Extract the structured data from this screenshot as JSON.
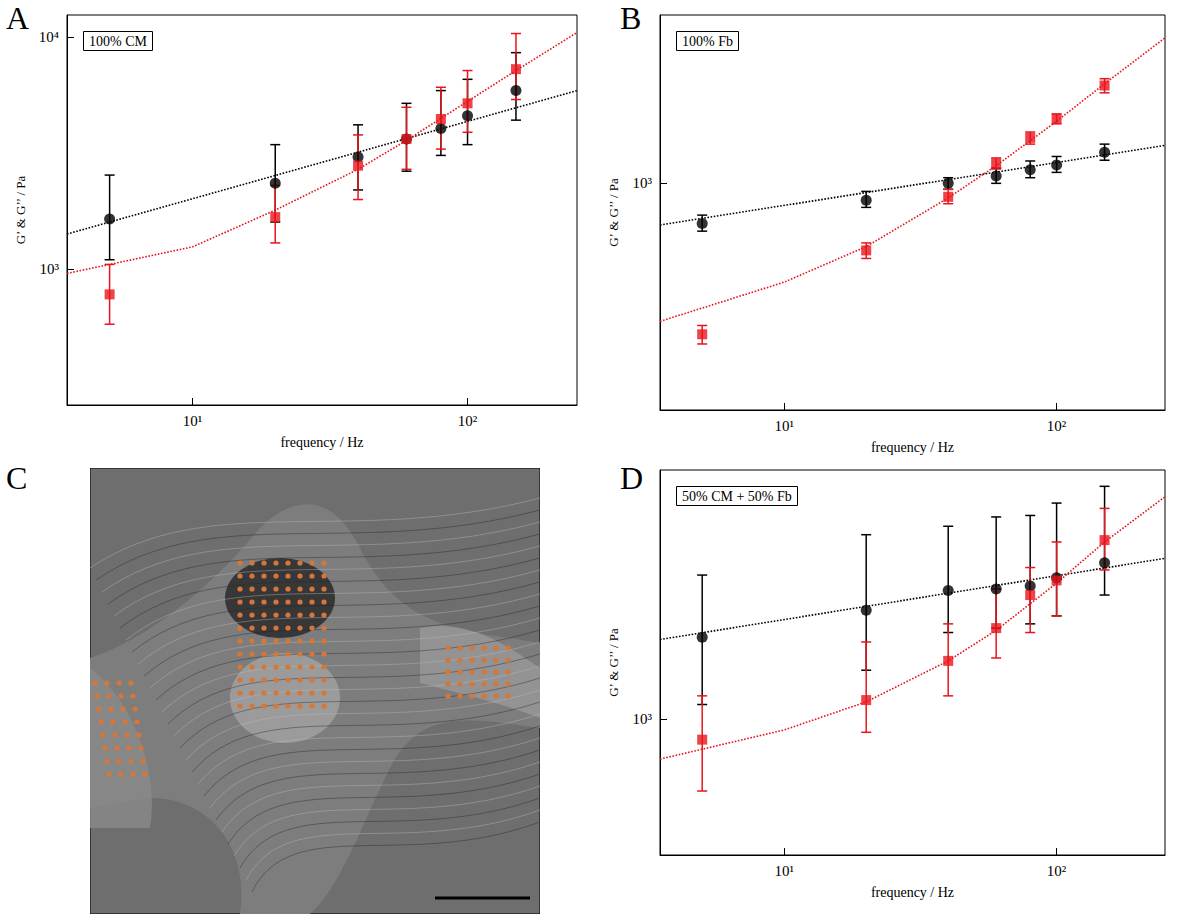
{
  "chart_data": [
    {
      "panel": "A",
      "type": "scatter",
      "title": "100% CM",
      "xlabel": "frequency / Hz",
      "ylabel": "G’ & G’’ / Pa",
      "log": true,
      "xlim": [
        3.5,
        250
      ],
      "xticks": [
        {
          "value": 10,
          "label": "10¹"
        },
        {
          "value": 100,
          "label": "10²"
        }
      ],
      "ylim": [
        260,
        12500
      ],
      "yticks": [
        {
          "value": 1000,
          "label": "10³"
        },
        {
          "value": 10000,
          "label": "10⁴"
        }
      ],
      "x": [
        5,
        20,
        40,
        60,
        80,
        100,
        150
      ],
      "series": [
        {
          "color": "#000000",
          "marker": "circle",
          "values": [
            1650,
            2350,
            3050,
            3650,
            4050,
            4600,
            5900
          ],
          "error_low": [
            1100,
            1600,
            2200,
            2650,
            3100,
            3450,
            4400
          ],
          "error_high": [
            2550,
            3450,
            4200,
            5200,
            5900,
            6600,
            8600
          ],
          "fit": {
            "line_style": "dotted",
            "x": [
              3.5,
              250
            ],
            "values": [
              1420,
              5900
            ]
          }
        },
        {
          "color": "#e8141b",
          "marker": "square",
          "values": [
            780,
            1680,
            2800,
            3650,
            4450,
            5200,
            7300
          ],
          "error_low": [
            580,
            1300,
            2000,
            2700,
            3300,
            3900,
            5400
          ],
          "error_high": [
            1050,
            2300,
            3800,
            5000,
            6100,
            7200,
            10400
          ],
          "fit": {
            "line_style": "dotted",
            "x": [
              3.5,
              10,
              20,
              40,
              60,
              100,
              150,
              250
            ],
            "values": [
              960,
              1250,
              1800,
              2700,
              3600,
              5300,
              7200,
              10500
            ]
          }
        }
      ]
    },
    {
      "panel": "B",
      "type": "scatter",
      "title": "100% Fb",
      "xlabel": "frequency / Hz",
      "ylabel": "G’ & G’’ / Pa",
      "log": true,
      "xlim": [
        3.5,
        250
      ],
      "xticks": [
        {
          "value": 10,
          "label": "10¹"
        },
        {
          "value": 100,
          "label": "10²"
        }
      ],
      "ylim": [
        96,
        5700
      ],
      "yticks": [
        {
          "value": 1000,
          "label": "10³"
        }
      ],
      "x": [
        5,
        20,
        40,
        60,
        80,
        100,
        150
      ],
      "series": [
        {
          "color": "#000000",
          "marker": "circle",
          "values": [
            660,
            840,
            1000,
            1080,
            1150,
            1210,
            1380
          ],
          "error_low": [
            610,
            780,
            940,
            1000,
            1060,
            1120,
            1270
          ],
          "error_high": [
            720,
            920,
            1060,
            1170,
            1260,
            1320,
            1500
          ],
          "fit": {
            "line_style": "dotted",
            "x": [
              3.5,
              250
            ],
            "values": [
              650,
              1480
            ]
          }
        },
        {
          "color": "#e8141b",
          "marker": "square",
          "values": [
            210,
            500,
            870,
            1230,
            1600,
            1950,
            2750
          ],
          "error_low": [
            190,
            460,
            810,
            1160,
            1500,
            1850,
            2550
          ],
          "error_high": [
            230,
            540,
            940,
            1300,
            1700,
            2050,
            2950
          ],
          "fit": {
            "line_style": "dotted",
            "x": [
              3.5,
              10,
              20,
              40,
              60,
              100,
              150,
              250
            ],
            "values": [
              240,
              360,
              520,
              860,
              1200,
              1900,
              2800,
              4500
            ]
          }
        }
      ]
    },
    {
      "panel": "D",
      "type": "scatter",
      "title": "50% CM + 50% Fb",
      "xlabel": "frequency / Hz",
      "ylabel": "G’ & G’’ / Pa",
      "log": true,
      "xlim": [
        3.5,
        250
      ],
      "xticks": [
        {
          "value": 10,
          "label": "10¹"
        },
        {
          "value": 100,
          "label": "10²"
        }
      ],
      "ylim": [
        270,
        11000
      ],
      "yticks": [
        {
          "value": 1000,
          "label": "10³"
        }
      ],
      "x": [
        5,
        20,
        40,
        60,
        80,
        100,
        150
      ],
      "series": [
        {
          "color": "#000000",
          "marker": "circle",
          "values": [
            2200,
            2850,
            3450,
            3500,
            3600,
            3900,
            4500
          ],
          "error_low": [
            1150,
            1600,
            2300,
            2400,
            2500,
            2700,
            3300
          ],
          "error_high": [
            4000,
            5900,
            6400,
            7000,
            7100,
            8000,
            9400
          ],
          "fit": {
            "line_style": "dotted",
            "x": [
              3.5,
              250
            ],
            "values": [
              2150,
              4700
            ]
          }
        },
        {
          "color": "#e8141b",
          "marker": "square",
          "values": [
            820,
            1200,
            1750,
            2400,
            3300,
            3800,
            5600
          ],
          "error_low": [
            500,
            880,
            1250,
            1800,
            2300,
            2700,
            4200
          ],
          "error_high": [
            1250,
            2100,
            2500,
            3500,
            4300,
            5500,
            7600
          ],
          "fit": {
            "line_style": "dotted",
            "x": [
              3.5,
              10,
              20,
              40,
              60,
              100,
              150,
              250
            ],
            "values": [
              680,
              900,
              1180,
              1750,
              2350,
              3700,
              5500,
              8500
            ]
          }
        }
      ]
    }
  ],
  "image": {
    "panel": "C"
  }
}
